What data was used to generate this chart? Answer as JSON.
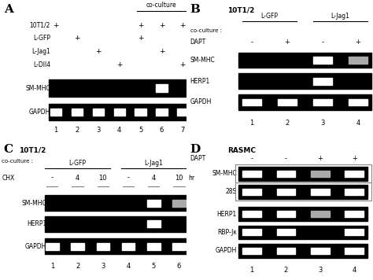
{
  "bg_color": "#000000",
  "band_color": "#ffffff",
  "faint_band_color": "#aaaaaa",
  "very_faint": "#555555",
  "fig_bg": "#ffffff",
  "panel_A": {
    "label": "A",
    "row_labels": [
      "10T1/2",
      "L-GFP",
      "L-Jag1",
      "L-Dll4"
    ],
    "plus_data": [
      [
        "+",
        "",
        "",
        "",
        "+",
        "+",
        "+"
      ],
      [
        "",
        "+",
        "",
        "",
        "+",
        "",
        ""
      ],
      [
        "",
        "",
        "+",
        "",
        "",
        "+",
        ""
      ],
      [
        "",
        "",
        "",
        "+",
        "",
        "",
        "+"
      ]
    ],
    "lane_nums": [
      "1",
      "2",
      "3",
      "4",
      "5",
      "6",
      "7"
    ],
    "SM-MHC_bands": [
      false,
      false,
      false,
      false,
      false,
      true,
      false
    ],
    "GAPDH_bands": [
      true,
      true,
      true,
      true,
      true,
      true,
      true
    ]
  },
  "panel_B": {
    "label": "B",
    "subtitle": "10T1/2",
    "DAPT_labels": [
      "-",
      "+",
      "-",
      "+"
    ],
    "lane_nums": [
      "1",
      "2",
      "3",
      "4"
    ],
    "SM-MHC_bands": [
      false,
      false,
      true,
      true
    ],
    "HERP1_bands": [
      false,
      false,
      true,
      false
    ],
    "GAPDH_bands": [
      true,
      true,
      true,
      true
    ],
    "SM-MHC_faint": [
      false,
      false,
      false,
      true
    ]
  },
  "panel_C": {
    "label": "C",
    "subtitle": "10T1/2",
    "CHX_labels": [
      "-",
      "4",
      "10",
      "-",
      "4",
      "10"
    ],
    "lane_nums": [
      "1",
      "2",
      "3",
      "4",
      "5",
      "6"
    ],
    "SM-MHC_bands": [
      false,
      false,
      false,
      false,
      true,
      true
    ],
    "HERP1_bands": [
      false,
      false,
      false,
      false,
      true,
      false
    ],
    "GAPDH_bands": [
      true,
      true,
      true,
      true,
      true,
      true
    ],
    "SM-MHC_faint": [
      false,
      false,
      false,
      false,
      false,
      true
    ],
    "HERP1_faint": [
      false,
      false,
      false,
      false,
      false,
      true
    ]
  },
  "panel_D": {
    "label": "D",
    "subtitle": "RASMC",
    "DAPT_labels": [
      "-",
      "-",
      "+",
      "+"
    ],
    "lane_nums": [
      "1",
      "2",
      "3",
      "4"
    ],
    "SM-MHC_bands": [
      true,
      true,
      true,
      true
    ],
    "28S_bands": [
      true,
      true,
      true,
      true
    ],
    "HERP1_bands": [
      true,
      true,
      true,
      true
    ],
    "RBP-Jk_bands": [
      true,
      true,
      false,
      true
    ],
    "GAPDH_bands": [
      true,
      true,
      true,
      true
    ],
    "SM-MHC_faint": [
      false,
      false,
      true,
      false
    ],
    "28S_faint": [
      false,
      false,
      false,
      false
    ],
    "HERP1_faint": [
      false,
      false,
      true,
      false
    ],
    "RBP-Jk_faint": [
      false,
      false,
      false,
      false
    ],
    "GAPDH_faint": [
      false,
      false,
      false,
      false
    ]
  }
}
